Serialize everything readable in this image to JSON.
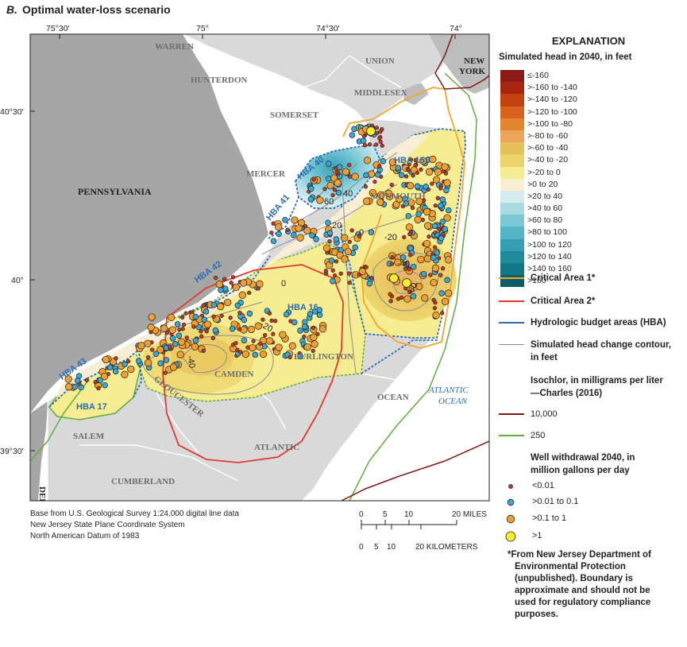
{
  "title": {
    "letter": "B.",
    "text": "Optimal water-loss scenario"
  },
  "map": {
    "lon_labels": [
      "75°30'",
      "75°",
      "74°30'",
      "74°"
    ],
    "lat_labels": [
      "40°30'",
      "40°",
      "39°30'"
    ],
    "states": [
      "PENNSYLVANIA",
      "DELAWARE",
      "NEW YORK"
    ],
    "counties": [
      "WARREN",
      "HUNTERDON",
      "SOMERSET",
      "UNION",
      "MIDDLESEX",
      "MERCER",
      "MONMOUTH",
      "BURLINGTON",
      "CAMDEN",
      "GLOUCESTER",
      "SALEM",
      "CUMBERLAND",
      "ATLANTIC",
      "OCEAN"
    ],
    "hba_labels": [
      "HBA 40",
      "HBA 41",
      "HBA 42",
      "HBA 43",
      "HBA 15",
      "HBA 16",
      "HBA 17"
    ],
    "contour_labels": [
      "60",
      "40",
      "20",
      "0",
      "-20",
      "-40",
      "-60",
      "0",
      "-20",
      "-40"
    ],
    "ocean_label": [
      "ATLANTIC",
      "OCEAN"
    ]
  },
  "scale_bar": {
    "miles_ticks": [
      "0",
      "5",
      "10",
      "20 MILES"
    ],
    "km_ticks": [
      "0",
      "5",
      "10",
      "20 KILOMETERS"
    ]
  },
  "credits": [
    "Base from U.S. Geological Survey 1:24,000 digital line data",
    "New Jersey State Plane Coordinate System",
    "North American Datum of 1983"
  ],
  "explanation": {
    "title": "EXPLANATION",
    "head_title": "Simulated head in 2040, in feet",
    "ramp": [
      {
        "label": "≤-160",
        "color": "#8a1a14"
      },
      {
        "label": ">-160 to -140",
        "color": "#a8260e"
      },
      {
        "label": ">-140 to -120",
        "color": "#c5400f"
      },
      {
        "label": ">-120 to -100",
        "color": "#d9621c"
      },
      {
        "label": ">-100 to -80",
        "color": "#e4852f"
      },
      {
        "label": ">-80 to -60",
        "color": "#eba45a"
      },
      {
        "label": ">-60 to -40",
        "color": "#e8c05a"
      },
      {
        "label": ">-40 to -20",
        "color": "#ecd46a"
      },
      {
        "label": ">-20 to 0",
        "color": "#f6ec91"
      },
      {
        "label": ">0 to 20",
        "color": "#f7eed3"
      },
      {
        "label": ">20 to 40",
        "color": "#d6ecef"
      },
      {
        "label": ">40 to 60",
        "color": "#a9dbe4"
      },
      {
        "label": ">60 to 80",
        "color": "#7cc9d6"
      },
      {
        "label": ">80 to 100",
        "color": "#53b5c6"
      },
      {
        "label": ">100 to 120",
        "color": "#35a0b3"
      },
      {
        "label": ">120 to 140",
        "color": "#1f8a9c"
      },
      {
        "label": ">140 to 160",
        "color": "#127684"
      },
      {
        "label": ">160",
        "color": "#0b5e69"
      }
    ],
    "critical1": "Critical Area 1*",
    "critical2": "Critical Area 2*",
    "hba": "Hydrologic budget areas (HBA)",
    "contour_line1": "Simulated head change contour,",
    "contour_line2": "in feet",
    "isochlor_title": "Isochlor, in milligrams per liter",
    "isochlor_ref": "—Charles (2016)",
    "iso1": "10,000",
    "iso2": "250",
    "wells_title1": "Well withdrawal 2040, in",
    "wells_title2": "million gallons per day",
    "wells": [
      "<0.01",
      ">0.01 to 0.1",
      ">0.1 to 1",
      ">1"
    ],
    "colors": {
      "critical1": "#f4a52a",
      "critical2": "#e03a2f",
      "hba": "#2b6cb0",
      "iso1": "#7b1c14",
      "iso2": "#5fae3c",
      "contour": "#8c8c8c",
      "land": "#d9d9d9",
      "pa": "#a6a6a6"
    }
  },
  "footnote": [
    "*From New Jersey Department of",
    "Environmental Protection",
    "(unpublished). Boundary is",
    "approximate and should not be",
    "used for regulatory compliance",
    "purposes."
  ]
}
